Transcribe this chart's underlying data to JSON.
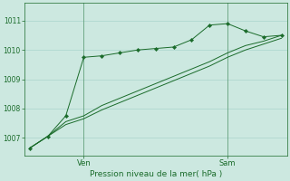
{
  "bg_color": "#cce8e0",
  "grid_color": "#aad4cc",
  "line_color": "#1a6b2a",
  "xlabel": "Pression niveau de la mer( hPa )",
  "ylim": [
    1006.4,
    1011.6
  ],
  "yticks": [
    1007,
    1008,
    1009,
    1010,
    1011
  ],
  "xlim": [
    -0.3,
    14.3
  ],
  "x_ven": 3,
  "x_sam": 11,
  "series1_x": [
    0,
    1,
    2,
    3,
    4,
    5,
    6,
    7,
    8,
    9,
    10,
    11,
    12,
    13,
    14
  ],
  "series1_y": [
    1006.65,
    1007.05,
    1007.45,
    1007.65,
    1007.95,
    1008.2,
    1008.45,
    1008.7,
    1008.95,
    1009.2,
    1009.45,
    1009.75,
    1010.0,
    1010.2,
    1010.4
  ],
  "series2_x": [
    0,
    1,
    2,
    3,
    4,
    5,
    6,
    7,
    8,
    9,
    10,
    11,
    12,
    13,
    14
  ],
  "series2_y": [
    1006.65,
    1007.05,
    1007.55,
    1007.75,
    1008.1,
    1008.35,
    1008.6,
    1008.85,
    1009.1,
    1009.35,
    1009.6,
    1009.9,
    1010.15,
    1010.3,
    1010.5
  ],
  "series3_x": [
    0,
    1,
    2,
    3,
    4,
    5,
    6,
    7,
    8,
    9,
    10,
    11,
    12,
    13,
    14
  ],
  "series3_y": [
    1006.65,
    1007.05,
    1007.75,
    1009.75,
    1009.8,
    1009.9,
    1010.0,
    1010.05,
    1010.1,
    1010.35,
    1010.85,
    1010.9,
    1010.65,
    1010.45,
    1010.5
  ]
}
